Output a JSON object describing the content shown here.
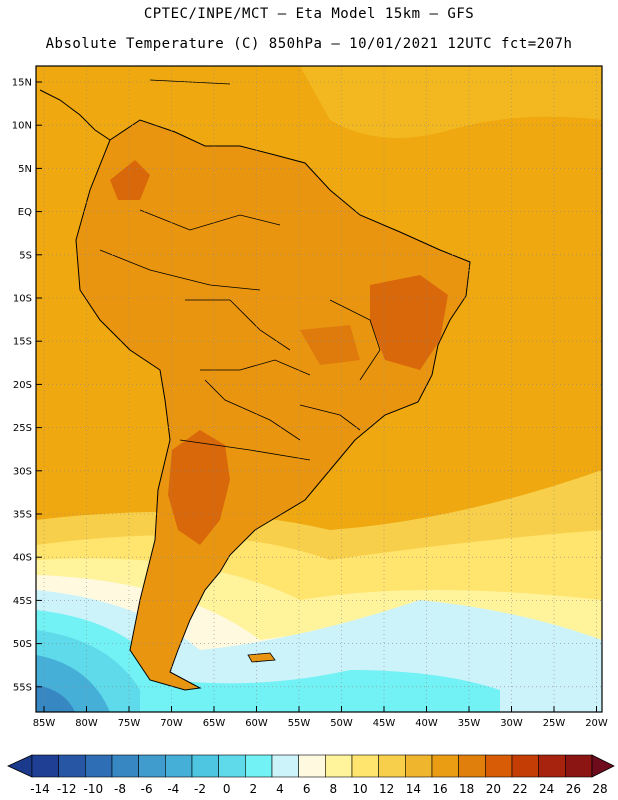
{
  "header": {
    "line1": "CPTEC/INPE/MCT –  Eta Model 15km – GFS",
    "line2": "Absolute Temperature (C) 850hPa – 10/01/2021 12UTC fct=207h"
  },
  "axes": {
    "lat_labels": [
      "15N",
      "10N",
      "5N",
      "EQ",
      "5S",
      "10S",
      "15S",
      "20S",
      "25S",
      "30S",
      "35S",
      "40S",
      "45S",
      "50S",
      "55S"
    ],
    "lon_labels": [
      "85W",
      "80W",
      "75W",
      "70W",
      "65W",
      "60W",
      "55W",
      "50W",
      "45W",
      "40W",
      "35W",
      "30W",
      "25W",
      "20W"
    ]
  },
  "colorbar": {
    "labels": [
      "-14",
      "-12",
      "-10",
      "-8",
      "-6",
      "-4",
      "-2",
      "0",
      "2",
      "4",
      "6",
      "8",
      "10",
      "12",
      "14",
      "16",
      "18",
      "20",
      "22",
      "24",
      "26",
      "28"
    ],
    "low_cap_color": "#1c3a8c",
    "high_cap_color": "#6e0c1e",
    "colors": [
      "#1f3f95",
      "#2656a4",
      "#2d6eb4",
      "#3788c2",
      "#3f9ccd",
      "#46afd8",
      "#4ec6e2",
      "#5fdaea",
      "#72f2f4",
      "#cdf3fa",
      "#fff9e0",
      "#fff39c",
      "#ffe46e",
      "#f8cf4a",
      "#efb52c",
      "#ea9c13",
      "#e07f0b",
      "#d85c06",
      "#c43d05",
      "#a8230d",
      "#8a1512"
    ]
  },
  "map": {
    "ocean_color": "#efa80f",
    "land_color": "#e99510",
    "hot_color": "#d9680a",
    "cold_color": "#5fdaea",
    "coast_color": "#000000"
  }
}
